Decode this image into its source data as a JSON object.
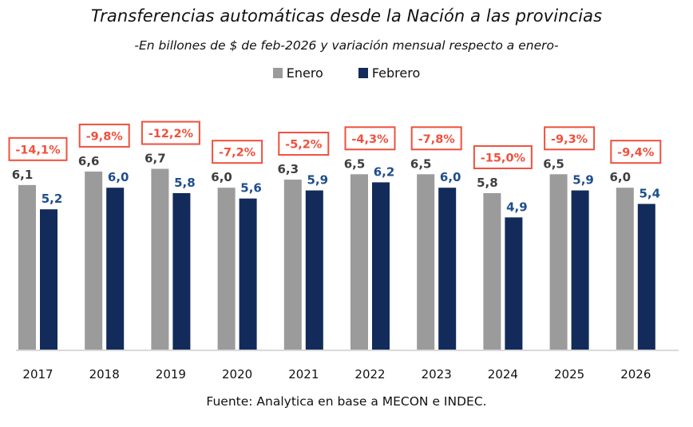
{
  "chart_data": {
    "type": "bar",
    "title": "Transferencias automáticas desde la Nación a las provincias",
    "subtitle": "-En billones de $ de feb-2026 y variación mensual respecto a enero-",
    "xlabel": "",
    "ylabel": "",
    "ylim": [
      0,
      7
    ],
    "grid": false,
    "legend_position": "top-center",
    "categories": [
      "2017",
      "2018",
      "2019",
      "2020",
      "2021",
      "2022",
      "2023",
      "2024",
      "2025",
      "2026"
    ],
    "series": [
      {
        "name": "Enero",
        "color": "#9b9b9b",
        "label_color": "#3f3f3f",
        "values": [
          6.1,
          6.6,
          6.7,
          6.0,
          6.3,
          6.5,
          6.5,
          5.8,
          6.5,
          6.0
        ],
        "labels": [
          "6,1",
          "6,6",
          "6,7",
          "6,0",
          "6,3",
          "6,5",
          "6,5",
          "5,8",
          "6,5",
          "6,0"
        ]
      },
      {
        "name": "Febrero",
        "color": "#122b5a",
        "label_color": "#1f4e8c",
        "values": [
          5.2,
          6.0,
          5.8,
          5.6,
          5.9,
          6.2,
          6.0,
          4.9,
          5.9,
          5.4
        ],
        "labels": [
          "5,2",
          "6,0",
          "5,8",
          "5,6",
          "5,9",
          "6,2",
          "6,0",
          "4,9",
          "5,9",
          "5,4"
        ]
      }
    ],
    "annotations": {
      "name": "Variación mensual",
      "color": "#f0503c",
      "values": [
        -14.1,
        -9.8,
        -12.2,
        -7.2,
        -5.2,
        -4.3,
        -7.8,
        -15.0,
        -9.3,
        -9.4
      ],
      "labels": [
        "-14,1%",
        "-9,8%",
        "-12,2%",
        "-7,2%",
        "-5,2%",
        "-4,3%",
        "-7,8%",
        "-15,0%",
        "-9,3%",
        "-9,4%"
      ]
    },
    "source": "Fuente: Analytica en base a MECON e INDEC."
  }
}
